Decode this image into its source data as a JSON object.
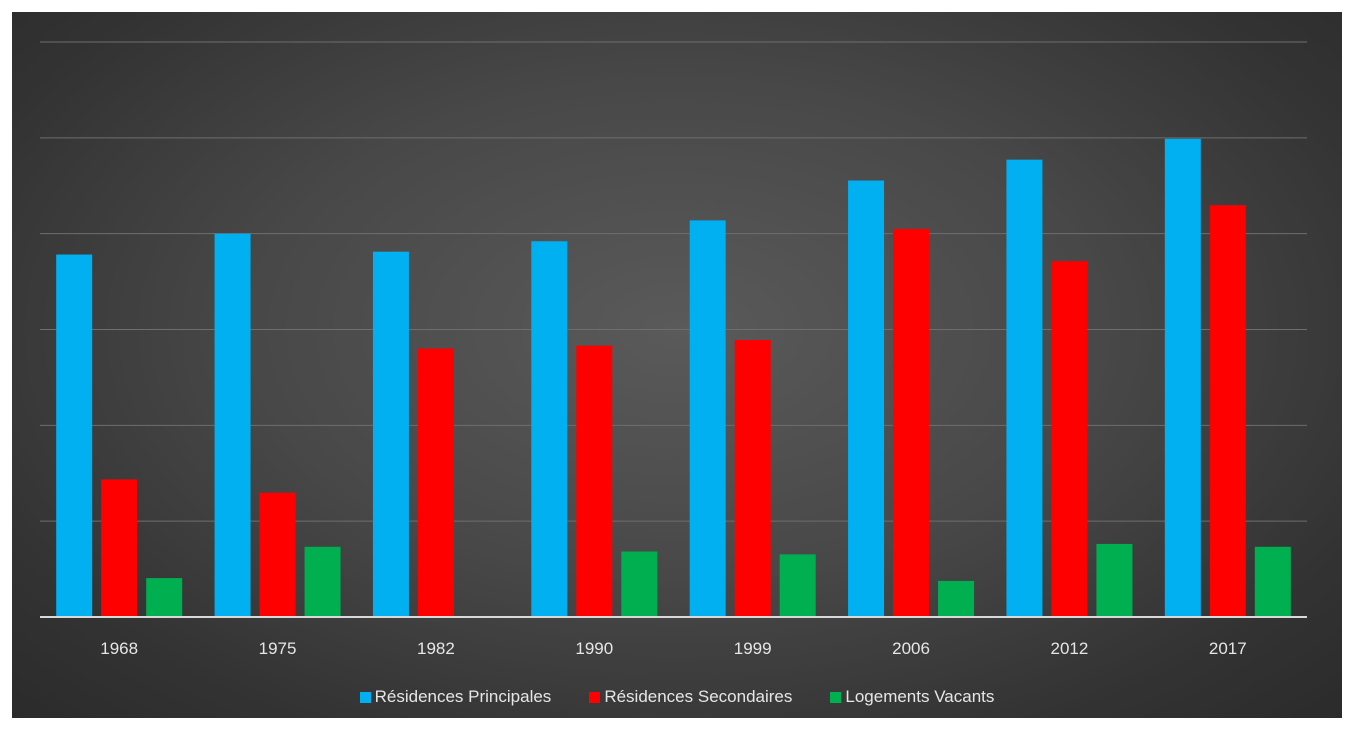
{
  "chart_data": {
    "type": "bar",
    "categories": [
      "1968",
      "1975",
      "1982",
      "1990",
      "1999",
      "2006",
      "2012",
      "2017"
    ],
    "series": [
      {
        "name": "Résidences Principales",
        "color": "#00B0F0",
        "values": [
          382,
          404,
          385,
          396,
          418,
          460,
          482,
          504
        ]
      },
      {
        "name": "Résidences Secondaires",
        "color": "#FF0000",
        "values": [
          145,
          131,
          283,
          286,
          292,
          409,
          375,
          434
        ]
      },
      {
        "name": "Logements Vacants",
        "color": "#00B050",
        "values": [
          41,
          74,
          0,
          69,
          66,
          38,
          77,
          74
        ]
      }
    ],
    "ylim": [
      0,
      606
    ],
    "gridlines": true,
    "legend": "bottom",
    "title": "",
    "xlabel": "",
    "ylabel": ""
  }
}
